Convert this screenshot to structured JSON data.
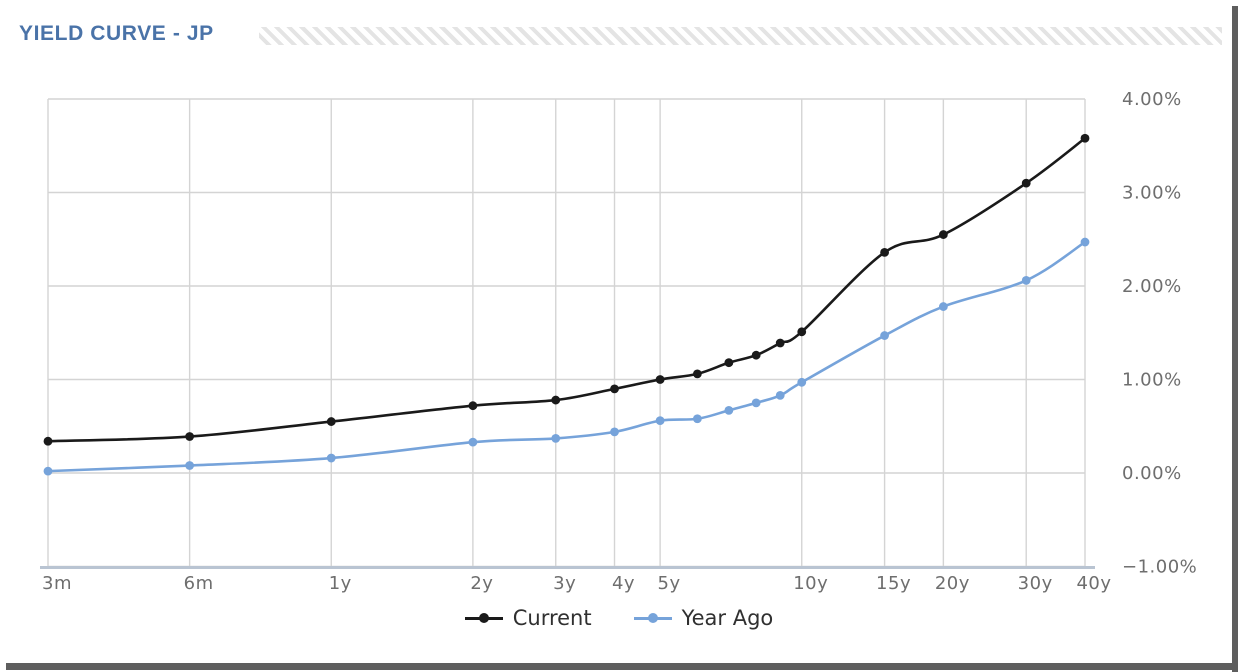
{
  "header": {
    "title": "YIELD CURVE - JP"
  },
  "colors": {
    "title": "#4a73a8",
    "current_series": "#1a1a1a",
    "year_ago_series": "#76a3da",
    "gridline": "#d4d4d4",
    "axis_line": "#b9c4d2",
    "tick_label": "#6e6e6e",
    "hatch_stripe": "#e4e4e4"
  },
  "chart_data": {
    "type": "line",
    "title": "YIELD CURVE - JP",
    "x_scale": "log",
    "x_unit": "years-to-maturity",
    "grid": true,
    "smooth": true,
    "legend_position": "bottom",
    "ylim": [
      -1,
      4
    ],
    "x": [
      0.25,
      0.5,
      1,
      2,
      3,
      4,
      5,
      6,
      7,
      8,
      9,
      10,
      15,
      20,
      30,
      40
    ],
    "x_ticks": {
      "values": [
        0.25,
        0.5,
        1,
        2,
        3,
        4,
        5,
        10,
        15,
        20,
        30,
        40
      ],
      "labels": [
        "3m",
        "6m",
        "1y",
        "2y",
        "3y",
        "4y",
        "5y",
        "10y",
        "15y",
        "20y",
        "30y",
        "40y"
      ]
    },
    "y_ticks": {
      "values": [
        4,
        3,
        2,
        1,
        0,
        -1
      ],
      "labels": [
        "4.00%",
        "3.00%",
        "2.00%",
        "1.00%",
        "0.00%",
        "−1.00%"
      ]
    },
    "series": [
      {
        "name": "Current",
        "color": "#1a1a1a",
        "values": [
          0.34,
          0.39,
          0.55,
          0.72,
          0.78,
          0.9,
          1.0,
          1.06,
          1.18,
          1.26,
          1.39,
          1.51,
          2.36,
          2.55,
          3.1,
          3.58
        ]
      },
      {
        "name": "Year Ago",
        "color": "#76a3da",
        "values": [
          0.02,
          0.08,
          0.16,
          0.33,
          0.37,
          0.44,
          0.56,
          0.58,
          0.67,
          0.75,
          0.83,
          0.97,
          1.47,
          1.78,
          2.06,
          2.47
        ]
      }
    ]
  }
}
